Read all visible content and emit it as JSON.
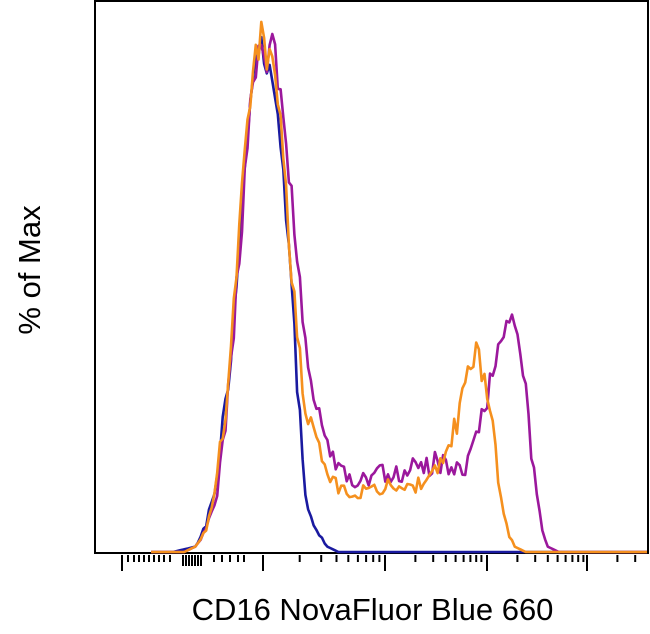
{
  "chart_data": {
    "type": "line",
    "subtype": "flow-cytometry-histogram",
    "title": "",
    "xlabel": "CD16 NovaFluor Blue 660",
    "ylabel": "% of Max",
    "x_scale": "log",
    "xlim": [
      0,
      1
    ],
    "ylim": [
      0,
      100
    ],
    "grid": false,
    "legend": "none",
    "series": [
      {
        "color": "#1a1aa0",
        "x": [
          0.1,
          0.14,
          0.18,
          0.2,
          0.22,
          0.24,
          0.26,
          0.28,
          0.29,
          0.3,
          0.31,
          0.32,
          0.33,
          0.34,
          0.35,
          0.36,
          0.37,
          0.38,
          0.4,
          0.42,
          0.44,
          0.48,
          1.0
        ],
        "y": [
          0,
          0,
          1,
          5,
          14,
          32,
          58,
          84,
          92,
          96,
          91,
          88,
          80,
          70,
          55,
          40,
          24,
          10,
          4,
          1,
          0,
          0,
          0
        ]
      },
      {
        "color": "#f5901e",
        "x": [
          0.1,
          0.16,
          0.18,
          0.2,
          0.22,
          0.24,
          0.26,
          0.28,
          0.29,
          0.3,
          0.31,
          0.32,
          0.33,
          0.34,
          0.35,
          0.36,
          0.37,
          0.38,
          0.4,
          0.42,
          0.44,
          0.46,
          0.48,
          0.5,
          0.52,
          0.54,
          0.56,
          0.58,
          0.6,
          0.62,
          0.64,
          0.66,
          0.68,
          0.69,
          0.7,
          0.71,
          0.72,
          0.73,
          0.74,
          0.75,
          0.76,
          0.78,
          1.0
        ],
        "y": [
          0,
          0,
          1,
          4,
          14,
          32,
          60,
          86,
          93,
          97,
          92,
          95,
          86,
          74,
          60,
          46,
          36,
          28,
          20,
          14,
          12,
          11,
          11,
          12,
          12,
          13,
          12,
          12,
          14,
          15,
          18,
          27,
          34,
          37,
          34,
          30,
          22,
          14,
          7,
          3,
          1,
          0,
          0
        ]
      },
      {
        "color": "#9b189c",
        "x": [
          0.1,
          0.16,
          0.18,
          0.2,
          0.22,
          0.24,
          0.26,
          0.28,
          0.29,
          0.3,
          0.31,
          0.32,
          0.33,
          0.34,
          0.35,
          0.36,
          0.37,
          0.38,
          0.4,
          0.42,
          0.44,
          0.46,
          0.48,
          0.5,
          0.52,
          0.54,
          0.56,
          0.58,
          0.6,
          0.62,
          0.64,
          0.66,
          0.68,
          0.7,
          0.72,
          0.74,
          0.75,
          0.76,
          0.77,
          0.78,
          0.79,
          0.8,
          0.81,
          0.82,
          0.84,
          1.0
        ],
        "y": [
          0,
          0,
          1,
          4,
          12,
          30,
          56,
          84,
          92,
          96,
          92,
          96,
          90,
          82,
          72,
          60,
          50,
          40,
          28,
          20,
          16,
          14,
          13,
          14,
          15,
          15,
          15,
          16,
          16,
          17,
          16,
          15,
          18,
          25,
          34,
          40,
          44,
          42,
          38,
          30,
          20,
          10,
          4,
          1,
          0,
          0
        ]
      }
    ]
  }
}
